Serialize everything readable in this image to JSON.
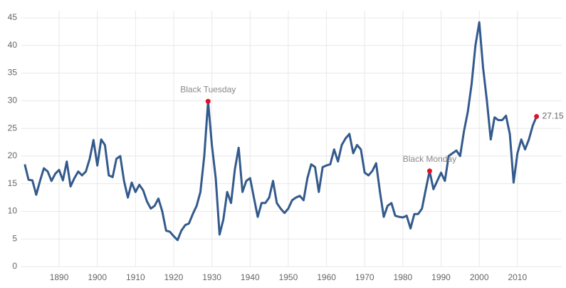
{
  "chart_data": {
    "type": "line",
    "x": [
      1881,
      1882,
      1883,
      1884,
      1885,
      1886,
      1887,
      1888,
      1889,
      1890,
      1891,
      1892,
      1893,
      1894,
      1895,
      1896,
      1897,
      1898,
      1899,
      1900,
      1901,
      1902,
      1903,
      1904,
      1905,
      1906,
      1907,
      1908,
      1909,
      1910,
      1911,
      1912,
      1913,
      1914,
      1915,
      1916,
      1917,
      1918,
      1919,
      1920,
      1921,
      1922,
      1923,
      1924,
      1925,
      1926,
      1927,
      1928,
      1929,
      1930,
      1931,
      1932,
      1933,
      1934,
      1935,
      1936,
      1937,
      1938,
      1939,
      1940,
      1941,
      1942,
      1943,
      1944,
      1945,
      1946,
      1947,
      1948,
      1949,
      1950,
      1951,
      1952,
      1953,
      1954,
      1955,
      1956,
      1957,
      1958,
      1959,
      1960,
      1961,
      1962,
      1963,
      1964,
      1965,
      1966,
      1967,
      1968,
      1969,
      1970,
      1971,
      1972,
      1973,
      1974,
      1975,
      1976,
      1977,
      1978,
      1979,
      1980,
      1981,
      1982,
      1983,
      1984,
      1985,
      1986,
      1987,
      1988,
      1989,
      1990,
      1991,
      1992,
      1993,
      1994,
      1995,
      1996,
      1997,
      1998,
      1999,
      2000,
      2001,
      2002,
      2003,
      2004,
      2005,
      2006,
      2007,
      2008,
      2009,
      2010,
      2011,
      2012,
      2013,
      2014,
      2015
    ],
    "values": [
      18.5,
      15.7,
      15.6,
      13.0,
      15.5,
      17.8,
      17.2,
      15.5,
      16.8,
      17.5,
      15.6,
      19.0,
      14.5,
      16.0,
      17.2,
      16.5,
      17.2,
      19.5,
      22.9,
      18.3,
      23.0,
      22.0,
      16.5,
      16.2,
      19.5,
      20.0,
      15.5,
      12.5,
      15.2,
      13.5,
      14.8,
      13.8,
      11.8,
      10.5,
      11.0,
      12.3,
      10.0,
      6.5,
      6.3,
      5.5,
      4.8,
      6.5,
      7.5,
      7.8,
      9.5,
      11.0,
      13.5,
      20.0,
      29.9,
      22.0,
      16.0,
      5.8,
      8.5,
      13.5,
      11.5,
      17.5,
      21.5,
      13.5,
      15.5,
      16.0,
      12.5,
      9.0,
      11.5,
      11.5,
      12.5,
      15.5,
      11.5,
      10.5,
      9.7,
      10.5,
      12.0,
      12.5,
      12.8,
      12.0,
      16.0,
      18.5,
      18.0,
      13.5,
      18.0,
      18.3,
      18.5,
      21.2,
      19.0,
      22.0,
      23.2,
      24.0,
      20.5,
      22.0,
      21.2,
      17.0,
      16.5,
      17.3,
      18.7,
      13.5,
      9.0,
      11.0,
      11.5,
      9.2,
      9.0,
      8.9,
      9.2,
      6.9,
      9.5,
      9.5,
      10.5,
      14.0,
      17.3,
      14.0,
      15.5,
      17.0,
      15.5,
      20.0,
      20.5,
      21.0,
      20.0,
      24.5,
      28.0,
      33.0,
      40.0,
      44.2,
      36.0,
      30.0,
      23.0,
      27.0,
      26.5,
      26.5,
      27.3,
      24.0,
      15.2,
      20.5,
      23.0,
      21.2,
      23.0,
      25.5,
      27.15
    ],
    "color": "#335a8c",
    "xlim": [
      1880,
      2016
    ],
    "ylim": [
      0,
      45
    ],
    "xticks": [
      1890,
      1900,
      1910,
      1920,
      1930,
      1940,
      1950,
      1960,
      1970,
      1980,
      1990,
      2000,
      2010
    ],
    "yticks": [
      0,
      5,
      10,
      15,
      20,
      25,
      30,
      35,
      40,
      45
    ],
    "grid": true,
    "annotations": [
      {
        "text": "Black Tuesday",
        "x": 1929,
        "y": 29.9,
        "color": "#e0112b"
      },
      {
        "text": "Black Monday",
        "x": 1987,
        "y": 17.3,
        "color": "#e0112b"
      }
    ]
  }
}
